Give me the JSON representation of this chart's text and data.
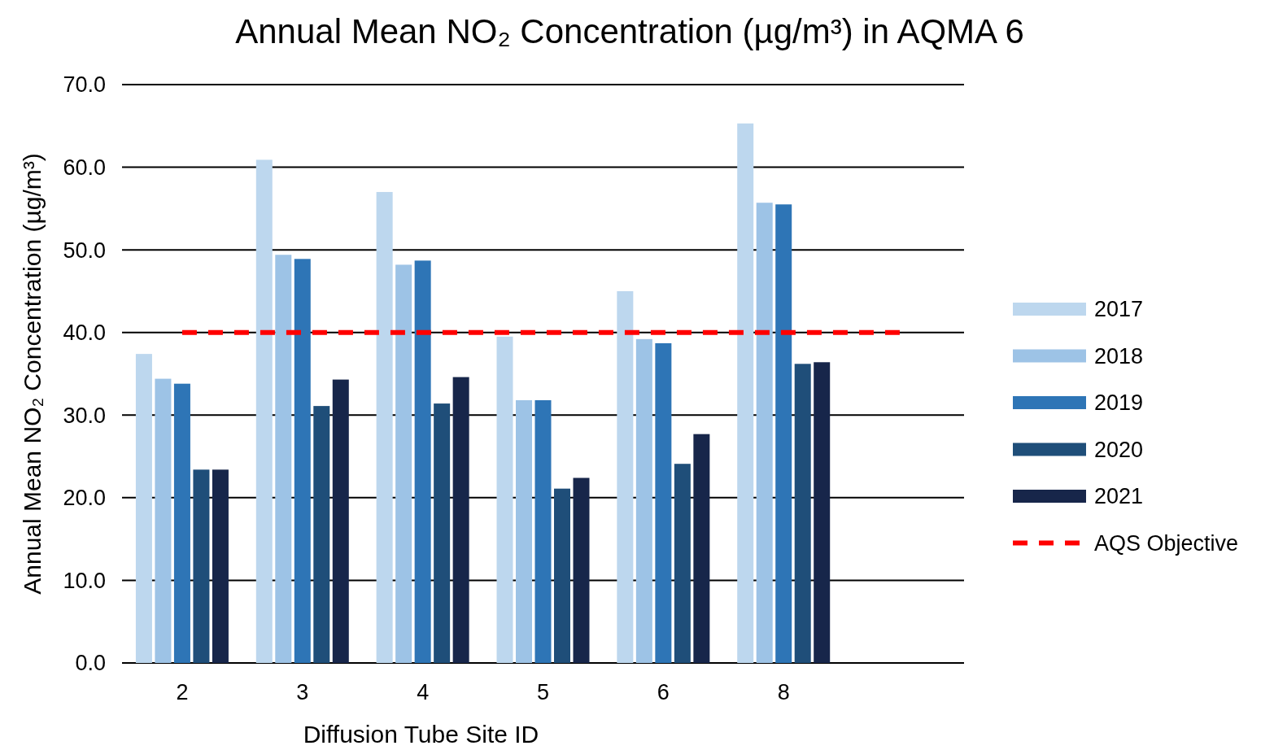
{
  "chart_data": {
    "type": "bar",
    "title": "Annual Mean NO₂ Concentration (µg/m³) in AQMA 6",
    "xlabel": "Diffusion Tube Site ID",
    "ylabel": "Annual Mean NO₂ Concentration (µg/m³)",
    "categories": [
      "2",
      "3",
      "4",
      "5",
      "6",
      "8",
      null
    ],
    "series": [
      {
        "name": "2017",
        "color": "#bdd7ee",
        "values": [
          37.4,
          60.9,
          57.0,
          39.5,
          45.0,
          65.3,
          null
        ]
      },
      {
        "name": "2018",
        "color": "#9dc3e6",
        "values": [
          34.4,
          49.4,
          48.2,
          31.8,
          39.2,
          55.7,
          null
        ]
      },
      {
        "name": "2019",
        "color": "#2e75b6",
        "values": [
          33.8,
          48.9,
          48.7,
          31.8,
          38.7,
          55.5,
          null
        ]
      },
      {
        "name": "2020",
        "color": "#1f4e79",
        "values": [
          23.4,
          31.1,
          31.4,
          21.1,
          24.1,
          36.2,
          null
        ]
      },
      {
        "name": "2021",
        "color": "#17264a",
        "values": [
          23.4,
          34.3,
          34.6,
          22.4,
          27.7,
          36.4,
          null
        ]
      },
      {
        "name": "AQS Objective",
        "type": "line",
        "color": "#ff0000",
        "line_style": "dashed",
        "values": [
          40,
          40,
          40,
          40,
          40,
          40,
          40
        ]
      }
    ],
    "ylim": [
      0,
      70
    ],
    "yticks": [
      {
        "value": 0,
        "label": "0.0"
      },
      {
        "value": 10,
        "label": "10.0"
      },
      {
        "value": 20,
        "label": "20.0"
      },
      {
        "value": 30,
        "label": "30.0"
      },
      {
        "value": 40,
        "label": "40.0"
      },
      {
        "value": 50,
        "label": "50.0"
      },
      {
        "value": 60,
        "label": "60.0"
      },
      {
        "value": 70,
        "label": "70.0"
      }
    ],
    "grid": "y",
    "legend": "right"
  }
}
